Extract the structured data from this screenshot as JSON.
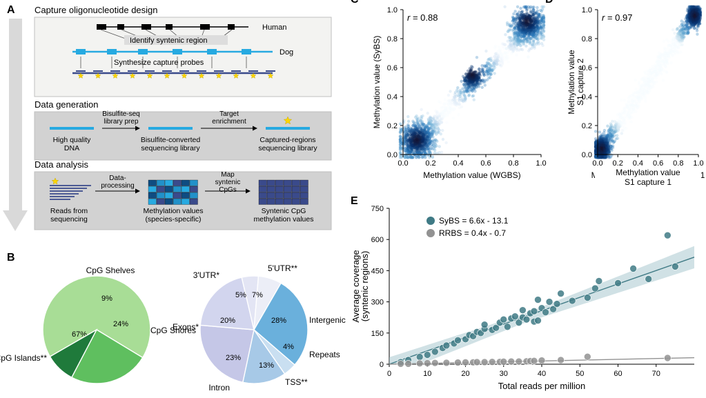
{
  "figure_background": "#ffffff",
  "panelA": {
    "sections": [
      {
        "title": "Capture oligonucleotide design",
        "box_fill": "#f3f3f1",
        "box_stroke": "#bfbfbf",
        "rows": [
          {
            "label": "Human",
            "color": "#000000",
            "kind": "human"
          },
          {
            "mid_label": "Identify syntenic region"
          },
          {
            "label": "Dog",
            "color": "#27aae1",
            "kind": "dog"
          },
          {
            "mid_label": "Synthesize capture probes"
          },
          {
            "label": "",
            "color": "#3a4a8b",
            "kind": "probes"
          }
        ]
      },
      {
        "title": "Data generation",
        "box_fill": "#d2d2d2",
        "box_stroke": "#bfbfbf",
        "items": [
          {
            "top": "",
            "bottom": "High quality DNA",
            "arrow": "Bisulfite-seq library prep"
          },
          {
            "top": "",
            "bottom": "Bisulfite-converted sequencing library",
            "arrow": "Target enrichment"
          },
          {
            "top": "",
            "bottom": "Captured-regions sequencing library",
            "arrow": ""
          }
        ],
        "bar_color": "#27aae1",
        "star_color": "#ffd500"
      },
      {
        "title": "Data analysis",
        "box_fill": "#d2d2d2",
        "box_stroke": "#bfbfbf",
        "items": [
          {
            "top": "",
            "bottom": "Reads from sequencing",
            "arrow": "Data-processing"
          },
          {
            "top": "",
            "bottom": "Methylation values (species-specific)",
            "arrow": "Map syntenic CpGs"
          },
          {
            "top": "",
            "bottom": "Syntenic CpG methylation values",
            "arrow": ""
          }
        ],
        "matrix_colors": [
          "#0f4c81",
          "#2291c9",
          "#27aae1",
          "#3a4a8b"
        ]
      }
    ],
    "arrow_color": "#d9d9d9",
    "arrow_border": "#d9d9d9"
  },
  "panelB": {
    "pie1": {
      "slices": [
        {
          "label": "CpG Islands**",
          "value": 67,
          "color": "#a8dd96",
          "label_text": "67%"
        },
        {
          "label": "CpG Shores",
          "value": 24,
          "color": "#5fbf5f",
          "label_text": "24%"
        },
        {
          "label": "CpG Shelves",
          "value": 9,
          "color": "#1f7a3b",
          "label_text": "9%"
        }
      ],
      "start_angle": 150
    },
    "pie2": {
      "slices": [
        {
          "label": "Intergenic",
          "value": 28,
          "color": "#6ab0dc",
          "label_text": "28%"
        },
        {
          "label": "Repeats",
          "value": 4,
          "color": "#c9dff1",
          "label_text": "4%"
        },
        {
          "label": "TSS**",
          "value": 13,
          "color": "#a7c9e7",
          "label_text": "13%"
        },
        {
          "label": "Intron",
          "value": 23,
          "color": "#c5c7e7",
          "label_text": "23%"
        },
        {
          "label": "Exons*",
          "value": 20,
          "color": "#d2d5ee",
          "label_text": "20%"
        },
        {
          "label": "3'UTR*",
          "value": 5,
          "color": "#e3e5f4",
          "label_text": "5%"
        },
        {
          "label": "5'UTR**",
          "value": 7,
          "color": "#eceef7",
          "label_text": "7%"
        }
      ],
      "start_angle": -60
    },
    "text_color": "#000000",
    "label_fontsize": 12,
    "pct_fontsize": 11
  },
  "panelC": {
    "xlabel": "Methylation value (WGBS)",
    "ylabel": "Methylation value (SyBS)",
    "xlim": [
      0,
      1
    ],
    "ylim": [
      0,
      1
    ],
    "ticks": [
      0.0,
      0.2,
      0.4,
      0.6,
      0.8,
      1.0
    ],
    "annotation": "r = 0.88",
    "annotation_italic_idx": 0,
    "density_colors": [
      "#f7fbff",
      "#c6dbef",
      "#6baed6",
      "#2171b5",
      "#08306b",
      "#18122b"
    ],
    "clusters": [
      [
        0.1,
        0.1,
        0.14
      ],
      [
        0.9,
        0.92,
        0.12
      ],
      [
        0.5,
        0.55,
        0.05
      ]
    ],
    "ridge_tilt": 0.96
  },
  "panelD": {
    "xlabel": "Methylation value S1 capture 1",
    "ylabel": "Methylation value S1 capture 2",
    "xlim": [
      0,
      1
    ],
    "ylim": [
      0,
      1
    ],
    "ticks": [
      0.0,
      0.2,
      0.4,
      0.6,
      0.8,
      1.0
    ],
    "annotation": "r = 0.97",
    "density_colors": [
      "#f7fbff",
      "#9ecae1",
      "#4292c6",
      "#2171b5",
      "#08306b",
      "#18122b"
    ],
    "clusters": [
      [
        0.04,
        0.04,
        0.07
      ],
      [
        0.96,
        0.96,
        0.06
      ]
    ],
    "ridge_tilt": 1.0
  },
  "panelE": {
    "xlabel": "Total reads per million",
    "ylabel": "Average coverage (syntenic regions)",
    "xlim": [
      0,
      80
    ],
    "ylim": [
      0,
      750
    ],
    "xticks": [
      0,
      10,
      20,
      30,
      40,
      50,
      60,
      70
    ],
    "yticks": [
      0,
      150,
      300,
      450,
      600,
      750
    ],
    "series": [
      {
        "name": "SyBS",
        "color": "#3f7a85",
        "fit": {
          "slope": 6.6,
          "intercept": -13.1
        },
        "legend": "SyBS = 6.6x - 13.1",
        "ci_fill": "#a2c4cc",
        "ci_opacity": 0.5,
        "points": [
          [
            3,
            10
          ],
          [
            5,
            20
          ],
          [
            8,
            35
          ],
          [
            10,
            45
          ],
          [
            12,
            60
          ],
          [
            14,
            78
          ],
          [
            15,
            90
          ],
          [
            17,
            100
          ],
          [
            18,
            115
          ],
          [
            20,
            120
          ],
          [
            21,
            140
          ],
          [
            22,
            135
          ],
          [
            23,
            155
          ],
          [
            24,
            150
          ],
          [
            25,
            170
          ],
          [
            25,
            190
          ],
          [
            27,
            165
          ],
          [
            28,
            175
          ],
          [
            29,
            200
          ],
          [
            30,
            215
          ],
          [
            31,
            180
          ],
          [
            32,
            220
          ],
          [
            33,
            230
          ],
          [
            34,
            200
          ],
          [
            35,
            260
          ],
          [
            35,
            225
          ],
          [
            36,
            215
          ],
          [
            37,
            245
          ],
          [
            38,
            255
          ],
          [
            38,
            205
          ],
          [
            39,
            310
          ],
          [
            39,
            210
          ],
          [
            40,
            270
          ],
          [
            41,
            250
          ],
          [
            42,
            300
          ],
          [
            43,
            265
          ],
          [
            44,
            290
          ],
          [
            45,
            340
          ],
          [
            48,
            305
          ],
          [
            52,
            320
          ],
          [
            54,
            365
          ],
          [
            55,
            400
          ],
          [
            60,
            390
          ],
          [
            64,
            460
          ],
          [
            68,
            410
          ],
          [
            73,
            620
          ],
          [
            75,
            470
          ]
        ]
      },
      {
        "name": "RRBS",
        "color": "#929292",
        "fit": {
          "slope": 0.4,
          "intercept": -0.7
        },
        "legend": "RRBS = 0.4x - 0.7",
        "points": [
          [
            3,
            2
          ],
          [
            5,
            2
          ],
          [
            8,
            4
          ],
          [
            10,
            5
          ],
          [
            12,
            6
          ],
          [
            15,
            7
          ],
          [
            18,
            8
          ],
          [
            20,
            9
          ],
          [
            22,
            9
          ],
          [
            23,
            10
          ],
          [
            25,
            10
          ],
          [
            27,
            11
          ],
          [
            29,
            11
          ],
          [
            30,
            12
          ],
          [
            32,
            13
          ],
          [
            34,
            13
          ],
          [
            36,
            14
          ],
          [
            37,
            15
          ],
          [
            38,
            16
          ],
          [
            40,
            18
          ],
          [
            45,
            20
          ],
          [
            52,
            36
          ],
          [
            73,
            30
          ]
        ]
      }
    ],
    "axis_color": "#000000",
    "axis_fontsize": 12,
    "legend_fontsize": 12,
    "marker_radius": 5,
    "marker_opacity": 0.85,
    "line_width": 1.4
  },
  "panel_letters": {
    "A": "A",
    "B": "B",
    "C": "C",
    "D": "D",
    "E": "E"
  },
  "panel_letter_fontsize": 16,
  "black": "#000000",
  "gray_axis": "#000000"
}
